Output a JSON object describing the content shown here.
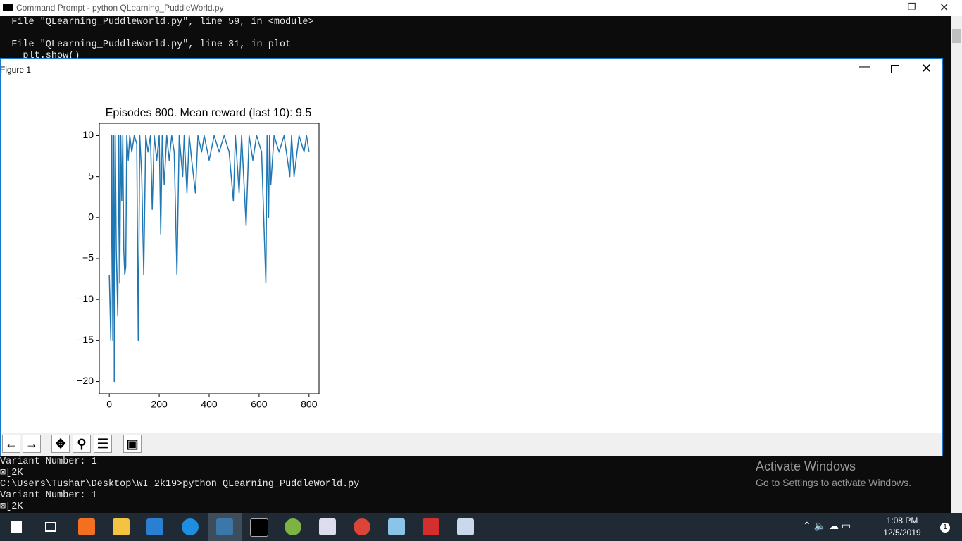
{
  "window_title": "Command Prompt - python  QLearning_PuddleWorld.py",
  "console_top": {
    "lines": [
      "  File \"QLearning_PuddleWorld.py\", line 59, in <module>",
      "",
      "  File \"QLearning_PuddleWorld.py\", line 31, in plot",
      "    plt.show()"
    ]
  },
  "figure_title": "Figure 1",
  "chart_data": {
    "type": "line",
    "title": "Episodes 800. Mean reward (last 10): 9.5",
    "x": [
      0,
      3,
      6,
      10,
      14,
      18,
      20,
      24,
      28,
      34,
      38,
      42,
      46,
      50,
      54,
      58,
      62,
      66,
      70,
      76,
      82,
      90,
      100,
      110,
      116,
      122,
      130,
      138,
      146,
      155,
      165,
      172,
      180,
      190,
      200,
      206,
      212,
      220,
      230,
      240,
      250,
      260,
      271,
      280,
      294,
      300,
      311,
      320,
      330,
      345,
      355,
      370,
      380,
      400,
      420,
      440,
      460,
      480,
      497,
      505,
      520,
      530,
      548,
      560,
      575,
      590,
      610,
      627,
      632,
      638,
      642,
      647,
      660,
      680,
      700,
      723,
      730,
      740,
      760,
      780,
      790,
      800
    ],
    "series": [
      {
        "color": "#1f77b4",
        "values": [
          -7,
          -11,
          -15,
          10,
          -15,
          10,
          -20,
          10,
          -4,
          -12,
          10,
          -8,
          10,
          2,
          10,
          -4,
          -7,
          -6,
          10,
          7,
          10,
          8,
          10,
          9,
          -15,
          10,
          5,
          -7,
          10,
          8,
          10,
          1,
          10,
          7,
          10,
          -2,
          10,
          4,
          10,
          7,
          10,
          8,
          -7,
          10,
          5,
          10,
          3,
          10,
          7,
          3,
          10,
          8,
          10,
          7,
          10,
          8,
          10,
          8,
          2,
          10,
          3,
          10,
          -1,
          10,
          7,
          10,
          8,
          -8,
          10,
          0,
          10,
          4,
          10,
          8,
          10,
          5,
          10,
          5,
          10,
          8,
          10,
          8
        ]
      }
    ],
    "xlim": [
      -40,
      840
    ],
    "xticks": [
      0,
      200,
      400,
      600,
      800
    ],
    "ylim": [
      -21.5,
      11.5
    ],
    "yticks": [
      {
        "value": -20,
        "label": "−20"
      },
      {
        "value": -15,
        "label": "−15"
      },
      {
        "value": -10,
        "label": "−10"
      },
      {
        "value": -5,
        "label": "−5"
      },
      0,
      5,
      10
    ],
    "grid": false
  },
  "console_bottom": {
    "lines": [
      "Variant Number: 1",
      "⊠[2K",
      "C:\\Users\\Tushar\\Desktop\\WI_2k19>python QLearning_PuddleWorld.py",
      "Variant Number: 1",
      "⊠[2K"
    ]
  },
  "watermark": {
    "title": "Activate Windows",
    "subtitle": "Go to Settings to activate Windows."
  },
  "taskbar": {
    "time": "1:08 PM",
    "date": "12/5/2019",
    "notifications": "1"
  }
}
